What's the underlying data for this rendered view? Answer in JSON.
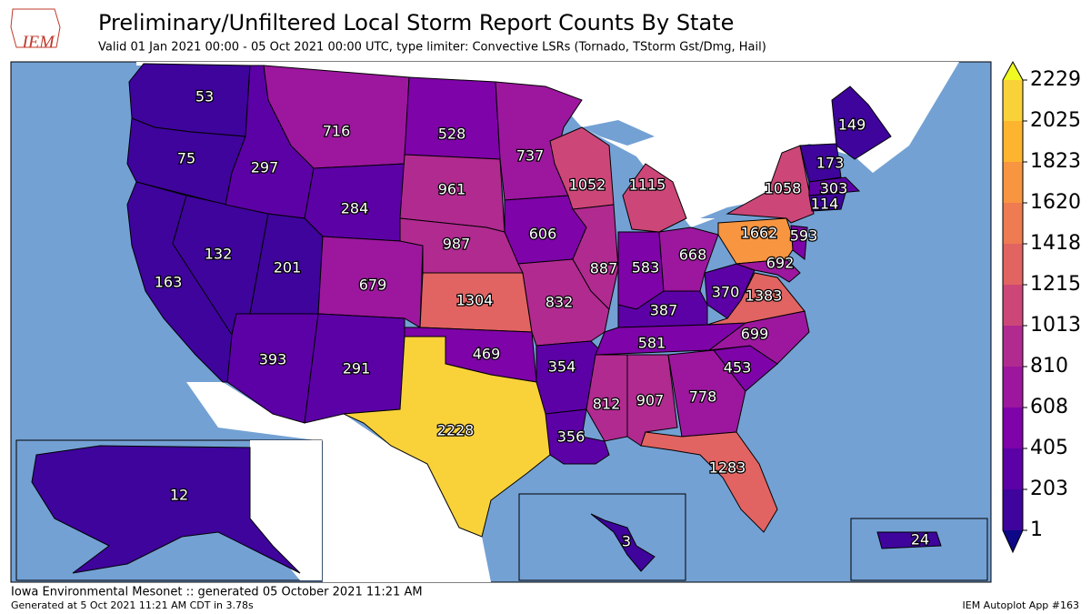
{
  "header": {
    "logo": "IEM",
    "title": "Preliminary/Unfiltered Local Storm Report Counts By State",
    "subtitle": "Valid 01 Jan 2021 00:00 - 05 Oct 2021 00:00 UTC, type limiter: Convective LSRs (Tornado, TStorm Gst/Dmg, Hail)"
  },
  "map": {
    "type": "choropleth",
    "states": [
      53,
      75,
      163,
      132,
      297,
      716,
      284,
      201,
      679,
      393,
      291,
      528,
      961,
      987,
      1304,
      469,
      2228,
      737,
      606,
      832,
      354,
      356,
      1052,
      887,
      1115,
      583,
      668,
      387,
      581,
      812,
      907,
      778,
      1283,
      453,
      699,
      1383,
      370,
      1662,
      1058,
      593,
      692,
      149,
      173,
      303,
      114,
      12,
      3,
      24
    ]
  },
  "colorbar": {
    "ticks": [
      1,
      203,
      405,
      608,
      810,
      1013,
      1215,
      1418,
      1620,
      1823,
      2025,
      2229
    ],
    "colors": [
      "#3e049c",
      "#5c01a6",
      "#7e03a8",
      "#9c179e",
      "#b12a90",
      "#cc4778",
      "#e16462",
      "#ee7b51",
      "#f89540",
      "#fdb42f",
      "#f9d23a"
    ],
    "under": "#0d0887",
    "over": "#f0f921"
  },
  "footer": {
    "left": "Iowa Environmental Mesonet :: generated 05 October 2021 11:21 AM",
    "generated": "Generated at 5 Oct 2021 11:21 AM CDT in 3.78s",
    "app": "IEM Autoplot App #163"
  }
}
